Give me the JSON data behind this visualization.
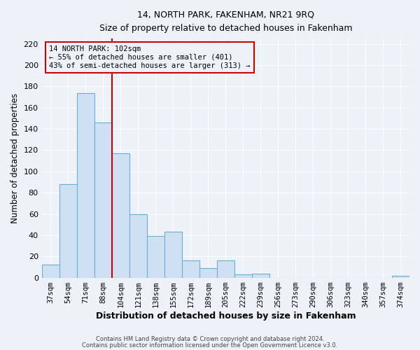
{
  "title": "14, NORTH PARK, FAKENHAM, NR21 9RQ",
  "subtitle": "Size of property relative to detached houses in Fakenham",
  "xlabel": "Distribution of detached houses by size in Fakenham",
  "ylabel": "Number of detached properties",
  "bar_labels": [
    "37sqm",
    "54sqm",
    "71sqm",
    "88sqm",
    "104sqm",
    "121sqm",
    "138sqm",
    "155sqm",
    "172sqm",
    "189sqm",
    "205sqm",
    "222sqm",
    "239sqm",
    "256sqm",
    "273sqm",
    "290sqm",
    "306sqm",
    "323sqm",
    "340sqm",
    "357sqm",
    "374sqm"
  ],
  "bar_values": [
    12,
    88,
    174,
    146,
    117,
    60,
    39,
    43,
    16,
    9,
    16,
    3,
    4,
    0,
    0,
    0,
    0,
    0,
    0,
    0,
    2
  ],
  "bar_color": "#cfe0f3",
  "bar_edge_color": "#6aaed6",
  "vline_color": "#cc0000",
  "annotation_text": "14 NORTH PARK: 102sqm\n← 55% of detached houses are smaller (401)\n43% of semi-detached houses are larger (313) →",
  "annotation_box_edge_color": "#cc0000",
  "ylim": [
    0,
    225
  ],
  "yticks": [
    0,
    20,
    40,
    60,
    80,
    100,
    120,
    140,
    160,
    180,
    200,
    220
  ],
  "footer_line1": "Contains HM Land Registry data © Crown copyright and database right 2024.",
  "footer_line2": "Contains public sector information licensed under the Open Government Licence v3.0.",
  "background_color": "#edf2f9",
  "grid_color": "#ffffff"
}
